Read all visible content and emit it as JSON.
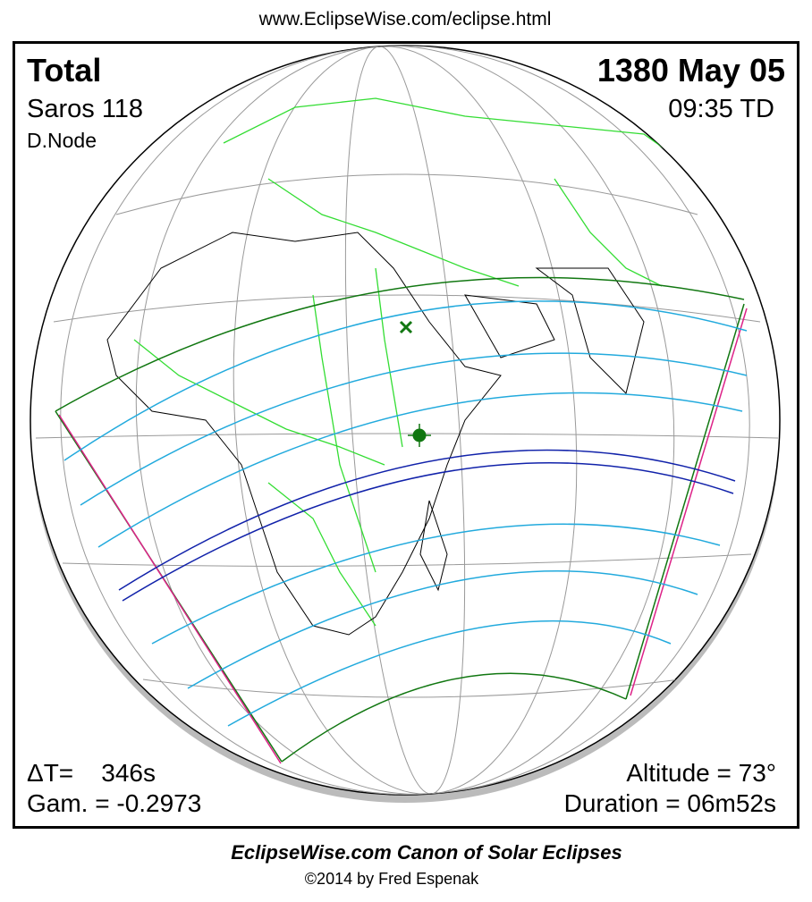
{
  "header": {
    "url": "www.EclipseWise.com/eclipse.html"
  },
  "panel": {
    "top_left": {
      "type": "Total",
      "saros": "Saros 118",
      "node": "D.Node"
    },
    "top_right": {
      "date": "1380 May 05",
      "time": "09:35 TD"
    },
    "bottom_left": {
      "delta_t": "ΔT=    346s",
      "gamma": "Gam. = -0.2973"
    },
    "bottom_right": {
      "altitude": "Altitude = 73°",
      "duration": "Duration = 06m52s"
    }
  },
  "footer": {
    "title": "EclipseWise.com Canon of Solar Eclipses",
    "credit": "©2014 by Fred Espenak"
  }
}
